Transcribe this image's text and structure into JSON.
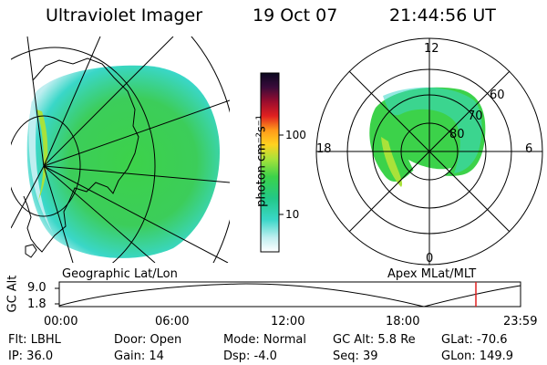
{
  "header": {
    "title": "Ultraviolet Imager",
    "date": "19 Oct 07",
    "time": "21:44:56 UT"
  },
  "colorbar": {
    "unit_label": "photon cm⁻²s⁻¹",
    "ticks": [
      "100",
      "10"
    ]
  },
  "geo_panel": {
    "caption": "Geographic Lat/Lon"
  },
  "polar_panel": {
    "caption": "Apex MLat/MLT",
    "mlt_labels": {
      "top": "12",
      "left": "18",
      "right": "6",
      "bottom": "0"
    },
    "mlat_labels": [
      "60",
      "70",
      "80"
    ]
  },
  "altitude_plot": {
    "axis_label": "GC Alt",
    "y_ticks": [
      "9.0",
      "1.8"
    ],
    "x_ticks": [
      "00:00",
      "06:00",
      "12:00",
      "18:00",
      "23:59"
    ]
  },
  "info": {
    "flt": "Flt: LBHL",
    "ip": "IP: 36.0",
    "door": "Door: Open",
    "gain": "Gain: 14",
    "mode": "Mode: Normal",
    "dsp": "Dsp:    -4.0",
    "gc_alt": "GC Alt: 5.8 Re",
    "seq": "Seq: 39",
    "glat": "GLat: -70.6",
    "glon": "GLon: 149.9"
  },
  "colors": {
    "aurora_green": "#3cd24a",
    "aurora_cyan": "#3ad7c8",
    "marker_red": "#e02020"
  }
}
